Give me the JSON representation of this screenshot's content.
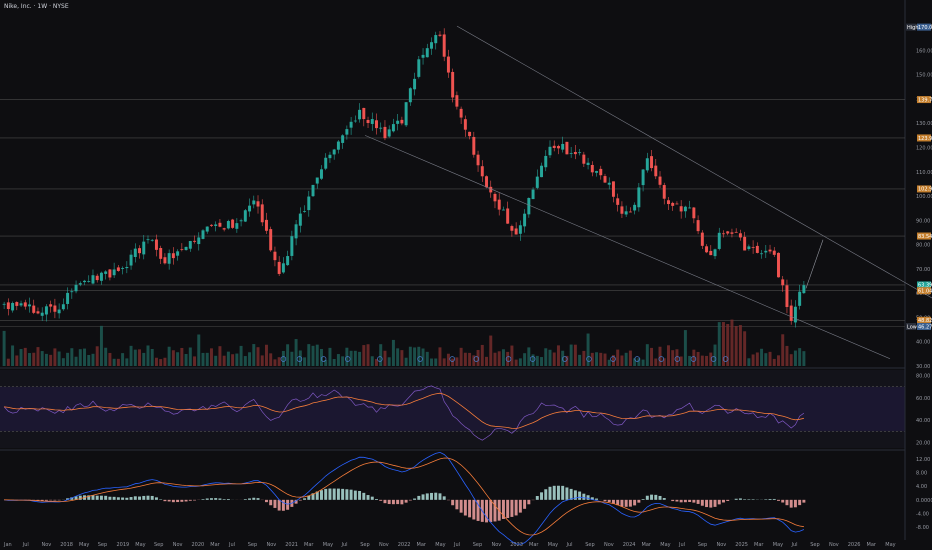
{
  "title": "Nike, Inc. · 1W · NYSE",
  "colors": {
    "background": "#0e0e11",
    "up": "#26a69a",
    "down": "#ef5350",
    "rsi_line": "#7e57c2",
    "rsi_ma": "#f57c3a",
    "macd_line": "#2962ff",
    "signal_line": "#f57c3a",
    "hline": "#4a4a4a",
    "trend": "#787b86"
  },
  "price_axis": {
    "ticks": [
      "170.00",
      "160.00",
      "150.00",
      "140.00",
      "130.00",
      "120.00",
      "110.00",
      "100.00",
      "90.00",
      "80.00",
      "70.00",
      "60.00",
      "50.00",
      "40.00",
      "30.00"
    ],
    "labels": [
      {
        "text": "170.00",
        "value": 169.6,
        "color": "#3b5f8f",
        "tag": "High"
      },
      {
        "text": "139.75",
        "value": 139.75,
        "color": "#c47f2e"
      },
      {
        "text": "123.94",
        "value": 123.94,
        "color": "#c47f2e"
      },
      {
        "text": "102.94",
        "value": 102.94,
        "color": "#c47f2e"
      },
      {
        "text": "83.54",
        "value": 83.54,
        "color": "#c47f2e"
      },
      {
        "text": "63.39",
        "value": 63.39,
        "color": "#26a69a"
      },
      {
        "text": "61.04",
        "value": 61.04,
        "color": "#c47f2e"
      },
      {
        "text": "48.82",
        "value": 48.82,
        "color": "#c47f2e"
      },
      {
        "text": "46.27",
        "value": 46.27,
        "color": "#3b5f8f",
        "tag": "Low"
      }
    ],
    "hlines": [
      139.75,
      123.94,
      102.94,
      83.54,
      63.39,
      61.04,
      48.82,
      46.27
    ]
  },
  "rsi_axis": {
    "ticks": [
      "80.00",
      "60.00",
      "40.00",
      "20.00"
    ],
    "values": [
      80,
      60,
      40,
      20
    ]
  },
  "macd_axis": {
    "ticks": [
      "12.00",
      "8.00",
      "4.00",
      "0.0000",
      "-4.00",
      "-8.00"
    ],
    "values": [
      12,
      8,
      4,
      0,
      -4,
      -8
    ]
  },
  "time_axis": [
    "Jan",
    "Jul",
    "Nov",
    "2018",
    "May",
    "Sep",
    "2019",
    "May",
    "Sep",
    "Nov",
    "2020",
    "Mar",
    "Jul",
    "Sep",
    "Nov",
    "2021",
    "Mar",
    "May",
    "Jul",
    "Sep",
    "Nov",
    "2022",
    "Mar",
    "May",
    "Jul",
    "Sep",
    "Nov",
    "2023",
    "Mar",
    "May",
    "Jul",
    "Sep",
    "Nov",
    "2024",
    "Mar",
    "May",
    "Jul",
    "Sep",
    "Nov",
    "2025",
    "Mar",
    "May",
    "Jul",
    "Sep",
    "Nov",
    "2026",
    "Mar",
    "May"
  ],
  "chart_data": [
    {
      "type": "candlestick",
      "title": "Nike, Inc. · 1W · NYSE",
      "ylim": [
        30,
        175
      ],
      "trendlines": [
        {
          "from": [
            "2021-11",
            170
          ],
          "to": [
            "2026-06",
            58
          ]
        },
        {
          "from": [
            "2021-03",
            125
          ],
          "to": [
            "2026-06",
            30
          ]
        }
      ],
      "anchors": [
        {
          "x": 0,
          "close": 55
        },
        {
          "x": 0.06,
          "close": 53
        },
        {
          "x": 0.09,
          "close": 63
        },
        {
          "x": 0.14,
          "close": 70
        },
        {
          "x": 0.17,
          "close": 82
        },
        {
          "x": 0.19,
          "close": 74
        },
        {
          "x": 0.23,
          "close": 85
        },
        {
          "x": 0.27,
          "close": 88
        },
        {
          "x": 0.29,
          "close": 100
        },
        {
          "x": 0.32,
          "close": 68
        },
        {
          "x": 0.34,
          "close": 88
        },
        {
          "x": 0.37,
          "close": 112
        },
        {
          "x": 0.41,
          "close": 135
        },
        {
          "x": 0.44,
          "close": 125
        },
        {
          "x": 0.46,
          "close": 130
        },
        {
          "x": 0.48,
          "close": 158
        },
        {
          "x": 0.5,
          "close": 169
        },
        {
          "x": 0.52,
          "close": 140
        },
        {
          "x": 0.55,
          "close": 110
        },
        {
          "x": 0.59,
          "close": 85
        },
        {
          "x": 0.63,
          "close": 120
        },
        {
          "x": 0.66,
          "close": 118
        },
        {
          "x": 0.69,
          "close": 108
        },
        {
          "x": 0.72,
          "close": 90
        },
        {
          "x": 0.74,
          "close": 118
        },
        {
          "x": 0.76,
          "close": 98
        },
        {
          "x": 0.79,
          "close": 93
        },
        {
          "x": 0.81,
          "close": 75
        },
        {
          "x": 0.83,
          "close": 88
        },
        {
          "x": 0.86,
          "close": 77
        },
        {
          "x": 0.885,
          "close": 75
        },
        {
          "x": 0.905,
          "close": 50
        },
        {
          "x": 0.92,
          "close": 62
        }
      ]
    },
    {
      "type": "line",
      "title": "RSI",
      "ylim": [
        15,
        85
      ],
      "ref_lines": [
        70,
        30
      ]
    },
    {
      "type": "bar",
      "title": "MACD",
      "ylim": [
        -10,
        14
      ]
    }
  ]
}
